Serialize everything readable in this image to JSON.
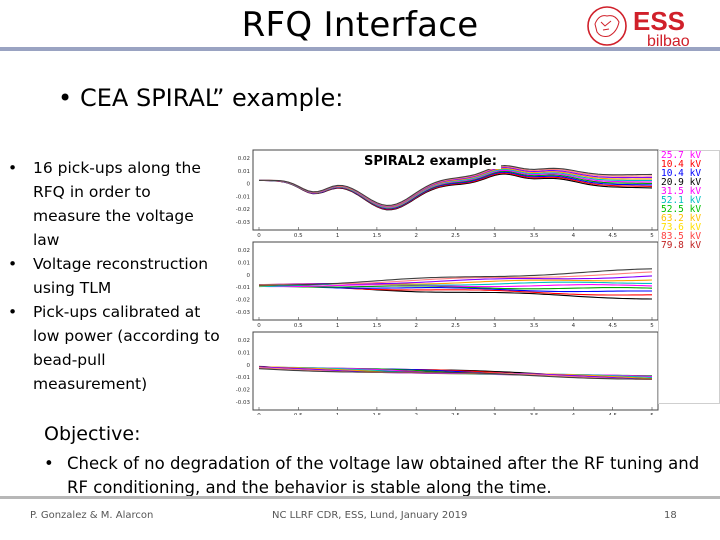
{
  "slide": {
    "title": "RFQ Interface",
    "main_bullet": "CEA SPIRAL” example:",
    "left_bullets": [
      "16 pick-ups along the RFQ in order to measure the voltage law",
      "Voltage reconstruction using TLM",
      "Pick-ups calibrated at low power (according to bead-pull measurement)"
    ],
    "objective": "Objective:",
    "check_bullet": "Check of no degradation of the voltage law obtained after the RF tuning and RF conditioning, and the behavior is stable along the time.",
    "bullet_glyph": "•"
  },
  "logo": {
    "text_top": "ESS",
    "text_bottom": "bilbao",
    "accent": "#d0202a"
  },
  "footer": {
    "authors": "P. Gonzalez & M. Alarcon",
    "event": "NC LLRF CDR, ESS, Lund, January 2019",
    "page": "18"
  },
  "figure": {
    "label": "SPIRAL2 example:",
    "yticks": [
      "0.02",
      "0.01",
      "0",
      "-0.01",
      "-0.02",
      "-0.03"
    ],
    "xticks": [
      "0",
      "0.5",
      "1",
      "1.5",
      "2",
      "2.5",
      "3",
      "3.5",
      "4",
      "4.5",
      "5"
    ],
    "legend": [
      {
        "text": "25.7 kV",
        "color": "#ff00ff"
      },
      {
        "text": "10.4 kV",
        "color": "#ff0000"
      },
      {
        "text": "10.4 kV",
        "color": "#0000ff"
      },
      {
        "text": "20.9 kV",
        "color": "#000000"
      },
      {
        "text": "31.5 kV",
        "color": "#ff00ff"
      },
      {
        "text": "52.1 kV",
        "color": "#00c0c0"
      },
      {
        "text": "52.5 kV",
        "color": "#00c000"
      },
      {
        "text": "63.2 kV",
        "color": "#ffc000"
      },
      {
        "text": "73.6 kV",
        "color": "#ffe000"
      },
      {
        "text": "83.5 kV",
        "color": "#ff4040"
      },
      {
        "text": "79.8 kV",
        "color": "#c02020"
      }
    ],
    "line_colors": [
      "#000000",
      "#ff0000",
      "#0000ff",
      "#00a000",
      "#ff00ff",
      "#00c0c0",
      "#ffa000",
      "#8000ff",
      "#ff8080",
      "#404040"
    ]
  }
}
